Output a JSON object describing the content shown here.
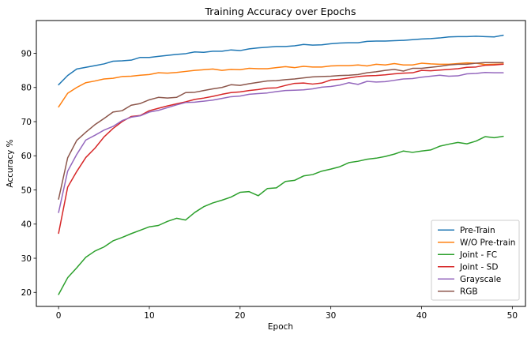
{
  "chart_data": {
    "type": "line",
    "title": "Training Accuracy over Epochs",
    "xlabel": "Epoch",
    "ylabel": "Accuracy %",
    "xlim": [
      -2.45,
      51.45
    ],
    "ylim": [
      15.9,
      99.6
    ],
    "xticks": [
      0,
      10,
      20,
      30,
      40,
      50
    ],
    "yticks": [
      20,
      30,
      40,
      50,
      60,
      70,
      80,
      90
    ],
    "grid": false,
    "legend_position": "lower right",
    "x": [
      0,
      1,
      2,
      3,
      4,
      5,
      6,
      7,
      8,
      9,
      10,
      11,
      12,
      13,
      14,
      15,
      16,
      17,
      18,
      19,
      20,
      21,
      22,
      23,
      24,
      25,
      26,
      27,
      28,
      29,
      30,
      31,
      32,
      33,
      34,
      35,
      36,
      37,
      38,
      39,
      40,
      41,
      42,
      43,
      44,
      45,
      46,
      47,
      48,
      49
    ],
    "series": [
      {
        "name": "Pre-Train",
        "color": "#1f77b4",
        "values": [
          80.8,
          83.5,
          85.4,
          85.9,
          86.4,
          86.9,
          87.7,
          87.8,
          88.0,
          88.8,
          88.8,
          89.1,
          89.4,
          89.7,
          89.9,
          90.4,
          90.3,
          90.6,
          90.6,
          91.0,
          90.8,
          91.3,
          91.6,
          91.8,
          92.0,
          92.0,
          92.2,
          92.6,
          92.4,
          92.5,
          92.8,
          93.0,
          93.1,
          93.1,
          93.5,
          93.6,
          93.6,
          93.7,
          93.8,
          94.0,
          94.2,
          94.3,
          94.5,
          94.8,
          94.9,
          94.9,
          95.0,
          94.9,
          94.8,
          95.3
        ]
      },
      {
        "name": "W/O Pre-train",
        "color": "#ff7f0e",
        "values": [
          74.3,
          78.3,
          80.0,
          81.4,
          81.9,
          82.5,
          82.7,
          83.2,
          83.3,
          83.6,
          83.8,
          84.3,
          84.2,
          84.4,
          84.7,
          85.0,
          85.2,
          85.4,
          85.0,
          85.3,
          85.2,
          85.6,
          85.5,
          85.5,
          85.8,
          86.1,
          85.8,
          86.2,
          86.0,
          86.0,
          86.3,
          86.4,
          86.4,
          86.6,
          86.3,
          86.8,
          86.6,
          87.0,
          86.6,
          86.6,
          87.1,
          86.9,
          86.8,
          86.8,
          87.0,
          87.2,
          87.1,
          86.7,
          86.8,
          86.9
        ]
      },
      {
        "name": "Joint - FC",
        "color": "#2ca02c",
        "values": [
          19.4,
          24.3,
          27.2,
          30.3,
          32.1,
          33.3,
          35.1,
          36.1,
          37.2,
          38.2,
          39.2,
          39.6,
          40.8,
          41.7,
          41.2,
          43.4,
          45.1,
          46.2,
          47.0,
          47.9,
          49.3,
          49.5,
          48.3,
          50.4,
          50.6,
          52.5,
          52.8,
          54.1,
          54.5,
          55.5,
          56.1,
          56.8,
          58.0,
          58.4,
          59.0,
          59.3,
          59.8,
          60.5,
          61.4,
          61.0,
          61.4,
          61.7,
          62.8,
          63.4,
          63.9,
          63.5,
          64.3,
          65.6,
          65.3,
          65.7
        ]
      },
      {
        "name": "Joint - SD",
        "color": "#d62728",
        "values": [
          37.3,
          50.8,
          55.4,
          59.5,
          62.2,
          65.5,
          68.0,
          70.0,
          71.5,
          71.8,
          73.2,
          73.9,
          74.6,
          75.2,
          75.8,
          76.5,
          76.9,
          77.4,
          78.0,
          78.5,
          78.7,
          79.1,
          79.4,
          79.8,
          79.9,
          80.6,
          81.2,
          81.3,
          81.0,
          81.3,
          82.2,
          82.4,
          82.8,
          83.2,
          83.4,
          83.5,
          83.7,
          84.0,
          84.2,
          84.3,
          85.0,
          84.9,
          85.1,
          85.3,
          85.5,
          85.9,
          86.0,
          86.5,
          86.6,
          86.8
        ]
      },
      {
        "name": "Grayscale",
        "color": "#9467bd",
        "values": [
          43.4,
          55.5,
          60.4,
          64.6,
          66.0,
          67.5,
          68.6,
          70.3,
          71.3,
          71.7,
          72.8,
          73.3,
          74.1,
          74.9,
          75.6,
          75.7,
          76.0,
          76.3,
          76.8,
          77.3,
          77.5,
          78.0,
          78.2,
          78.4,
          78.8,
          79.1,
          79.2,
          79.3,
          79.6,
          80.1,
          80.3,
          80.7,
          81.4,
          80.9,
          81.8,
          81.6,
          81.7,
          82.1,
          82.5,
          82.6,
          83.0,
          83.3,
          83.6,
          83.3,
          83.4,
          84.0,
          84.1,
          84.4,
          84.3,
          84.3
        ]
      },
      {
        "name": "RGB",
        "color": "#8c564b",
        "values": [
          47.3,
          59.4,
          64.5,
          66.9,
          69.1,
          70.9,
          72.8,
          73.2,
          74.8,
          75.3,
          76.4,
          77.1,
          76.9,
          77.1,
          78.5,
          78.6,
          79.1,
          79.6,
          80.0,
          80.8,
          80.6,
          81.1,
          81.5,
          81.9,
          82.0,
          82.3,
          82.5,
          82.8,
          83.1,
          83.2,
          83.3,
          83.5,
          83.6,
          83.8,
          84.3,
          84.6,
          85.0,
          85.3,
          84.8,
          85.6,
          85.6,
          85.9,
          86.2,
          86.6,
          86.8,
          86.8,
          87.1,
          87.3,
          87.3,
          87.3
        ]
      }
    ]
  }
}
